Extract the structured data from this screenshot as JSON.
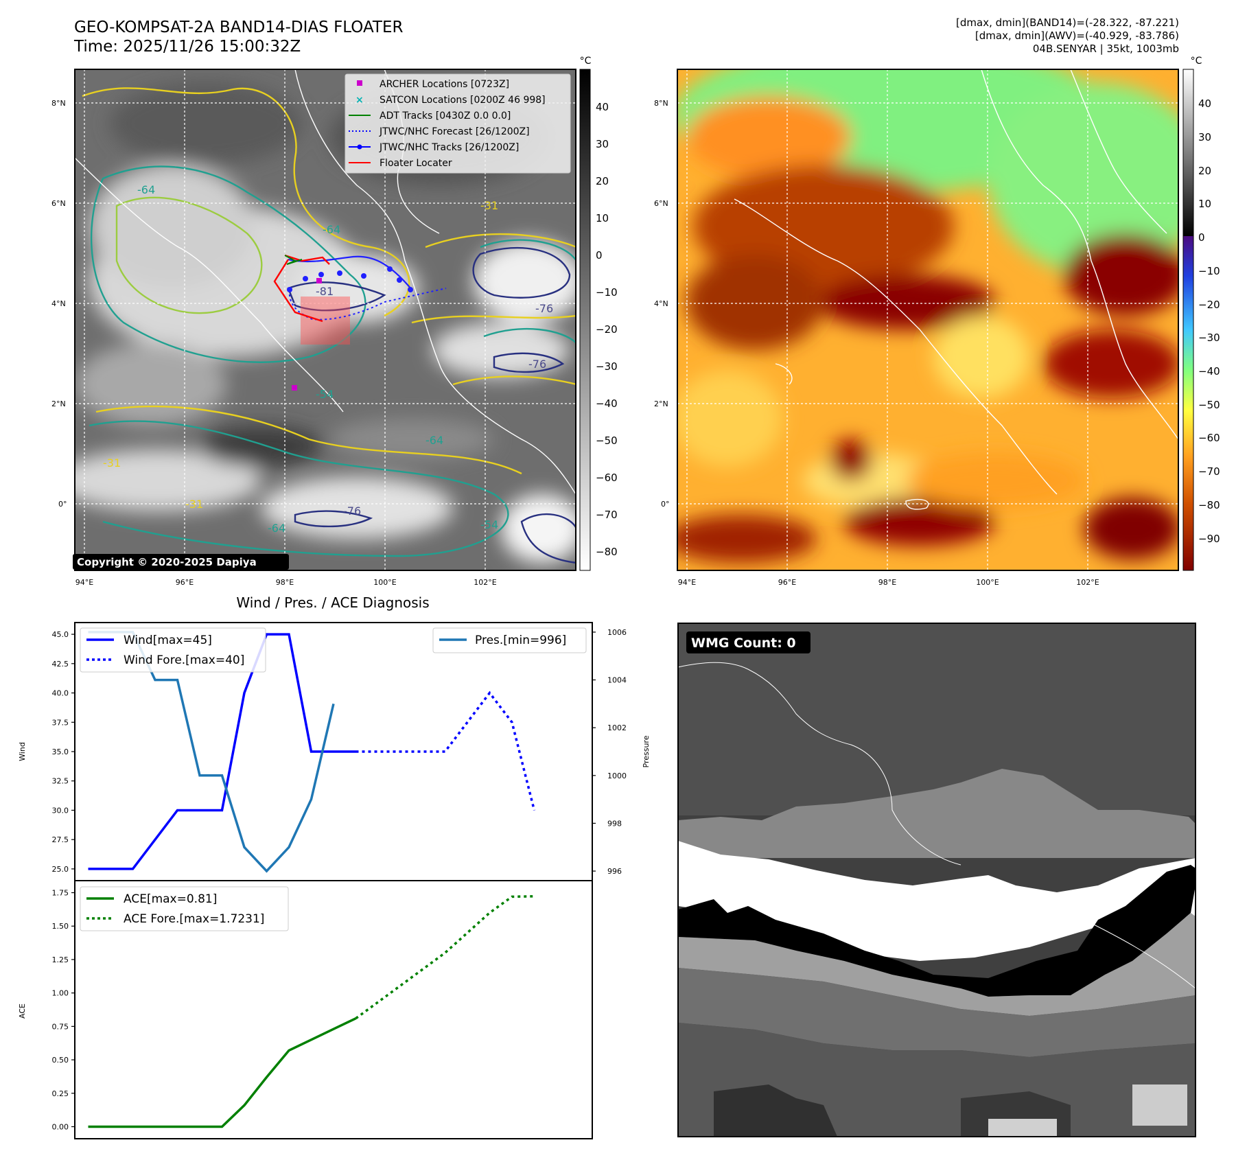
{
  "header": {
    "title_line1": "GEO-KOMPSAT-2A BAND14-DIAS FLOATER",
    "title_line2": "Time: 2025/11/26 15:00:32Z",
    "info_line1": "[dmax, dmin](BAND14)=(-28.322, -87.221)",
    "info_line2": "[dmax, dmin](AWV)=(-40.929, -83.786)",
    "info_line3": "04B.SENYAR | 35kt, 1003mb"
  },
  "maps": {
    "lat_labels": [
      "8°N",
      "6°N",
      "4°N",
      "2°N",
      "0°"
    ],
    "lon_labels": [
      "94°E",
      "96°E",
      "98°E",
      "100°E",
      "102°E"
    ],
    "copyright": "Copyright © 2020-2025 Dapiya",
    "contour_labels": [
      "-64",
      "-31",
      "-54",
      "-81",
      "-76"
    ],
    "legend": [
      {
        "label": "ARCHER Locations [0723Z]",
        "color": "#cc00cc",
        "style": "square"
      },
      {
        "label": "SATCON Locations [0200Z 46 998]",
        "color": "#00b3b3",
        "style": "x"
      },
      {
        "label": "ADT Tracks [0430Z 0.0 0.0]",
        "color": "#008000",
        "style": "line"
      },
      {
        "label": "JTWC/NHC Forecast [26/1200Z]",
        "color": "#0000ff",
        "style": "dotted"
      },
      {
        "label": "JTWC/NHC Tracks [26/1200Z]",
        "color": "#0000ff",
        "style": "line-dot"
      },
      {
        "label": "Floater Locater",
        "color": "#ff0000",
        "style": "line"
      }
    ],
    "left_colorbar": {
      "unit": "°C",
      "ticks": [
        "40",
        "30",
        "20",
        "10",
        "0",
        "−10",
        "−20",
        "−30",
        "−40",
        "−50",
        "−60",
        "−70",
        "−80"
      ]
    },
    "right_colorbar": {
      "unit": "°C",
      "ticks": [
        "40",
        "30",
        "20",
        "10",
        "0",
        "−10",
        "−20",
        "−30",
        "−40",
        "−50",
        "−60",
        "−70",
        "−80",
        "−90"
      ]
    }
  },
  "diagnosis": {
    "title": "Wind / Pres. / ACE Diagnosis"
  },
  "wmg": {
    "label": "WMG Count: 0"
  },
  "chart_data": [
    {
      "type": "line",
      "title": "Wind / Pres. / ACE Diagnosis",
      "ylabel": "Wind",
      "y2label": "Pressure",
      "ylim": [
        24.0,
        46.0
      ],
      "y2lim": [
        995.6,
        1006.4
      ],
      "xlim": [
        -0.3,
        11.3
      ],
      "yticks": [
        "25.0",
        "27.5",
        "30.0",
        "32.5",
        "35.0",
        "37.5",
        "40.0",
        "42.5",
        "45.0"
      ],
      "y2ticks": [
        "996",
        "998",
        "1000",
        "1002",
        "1004",
        "1006"
      ],
      "legend_left": [
        "Wind[max=45]",
        "Wind Fore.[max=40]"
      ],
      "legend_right": [
        "Pres.[min=996]"
      ],
      "series": [
        {
          "name": "Wind[max=45]",
          "axis": "left",
          "color": "#0000ff",
          "dash": "solid",
          "x": [
            0,
            1,
            2,
            3,
            3.5,
            4,
            4.5,
            5,
            5.5,
            6
          ],
          "values": [
            25,
            25,
            30,
            30,
            40,
            45,
            45,
            35,
            35,
            35
          ]
        },
        {
          "name": "Wind Fore.[max=40]",
          "axis": "left",
          "color": "#0000ff",
          "dash": "dotted",
          "x": [
            6,
            8,
            9,
            9.5,
            10
          ],
          "values": [
            35,
            35,
            40,
            37.5,
            30
          ]
        },
        {
          "name": "Pres.[min=996]",
          "axis": "right",
          "color": "#1f77b4",
          "dash": "solid",
          "x": [
            0,
            1,
            1.5,
            2,
            2.5,
            3,
            3.5,
            4,
            4.5,
            5,
            5.5
          ],
          "values": [
            1006,
            1006,
            1004,
            1004,
            1000,
            1000,
            997,
            996,
            997,
            999,
            1003
          ]
        }
      ]
    },
    {
      "type": "line",
      "ylabel": "ACE",
      "ylim": [
        -0.09,
        1.84
      ],
      "xlim": [
        -0.3,
        11.3
      ],
      "yticks": [
        "0.00",
        "0.25",
        "0.50",
        "0.75",
        "1.00",
        "1.25",
        "1.50",
        "1.75"
      ],
      "legend_left": [
        "ACE[max=0.81]",
        "ACE Fore.[max=1.7231]"
      ],
      "series": [
        {
          "name": "ACE[max=0.81]",
          "color": "#008000",
          "dash": "solid",
          "x": [
            0,
            1,
            2,
            3,
            3.5,
            4,
            4.5,
            5,
            5.5,
            6
          ],
          "values": [
            0,
            0,
            0,
            0,
            0.16,
            0.37,
            0.57,
            0.65,
            0.73,
            0.81
          ]
        },
        {
          "name": "ACE Fore.[max=1.7231]",
          "color": "#008000",
          "dash": "dotted",
          "x": [
            6,
            8,
            9,
            9.5,
            10
          ],
          "values": [
            0.81,
            1.3,
            1.6,
            1.72,
            1.7231
          ]
        }
      ]
    }
  ]
}
